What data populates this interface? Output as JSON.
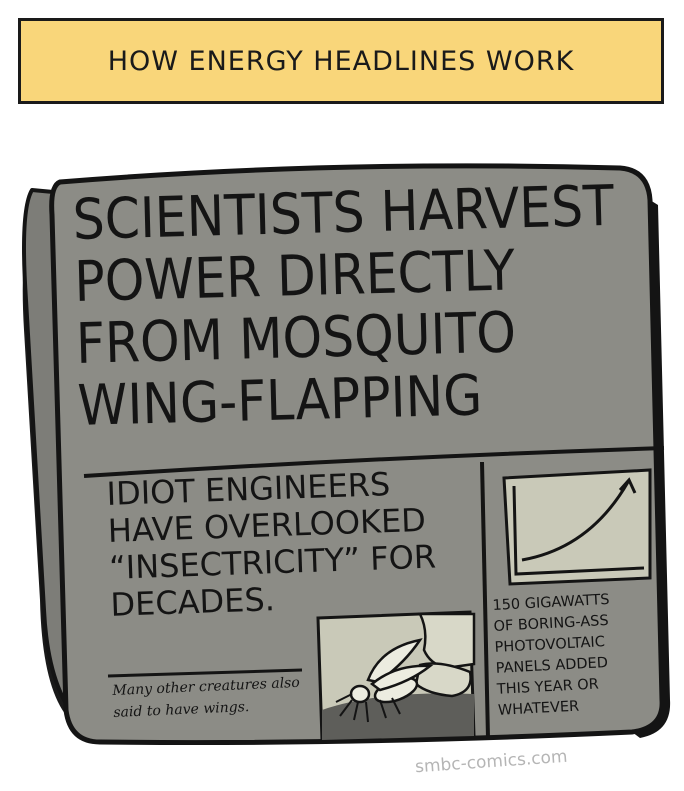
{
  "panel_caption": "HOW ENERGY HEADLINES WORK",
  "newspaper": {
    "headline_lines": [
      "SCIENTISTS HARVEST",
      "POWER DIRECTLY",
      "FROM MOSQUITO",
      "WING-FLAPPING"
    ],
    "subhead_lines": [
      "IDIOT ENGINEERS",
      "HAVE OVERLOOKED",
      "“INSECTRICITY” FOR",
      "DECADES."
    ],
    "photo_caption": "Many other creatures also said to have wings.",
    "sidebar_lines": [
      "150 GIGAWATTS",
      "OF BORING-ASS",
      "PHOTOVOLTAIC",
      "PANELS ADDED",
      "THIS YEAR OR",
      "WHATEVER"
    ]
  },
  "watermark": "smbc-comics.com",
  "colors": {
    "caption_fill": "#f9d67a",
    "paper_gray": "#8c8c86",
    "paper_dark": "#6f6f6a",
    "ink": "#141414",
    "photo_gray": "#c9c9b8"
  },
  "icons": [
    "mosquito-icon",
    "growth-chart-icon"
  ]
}
